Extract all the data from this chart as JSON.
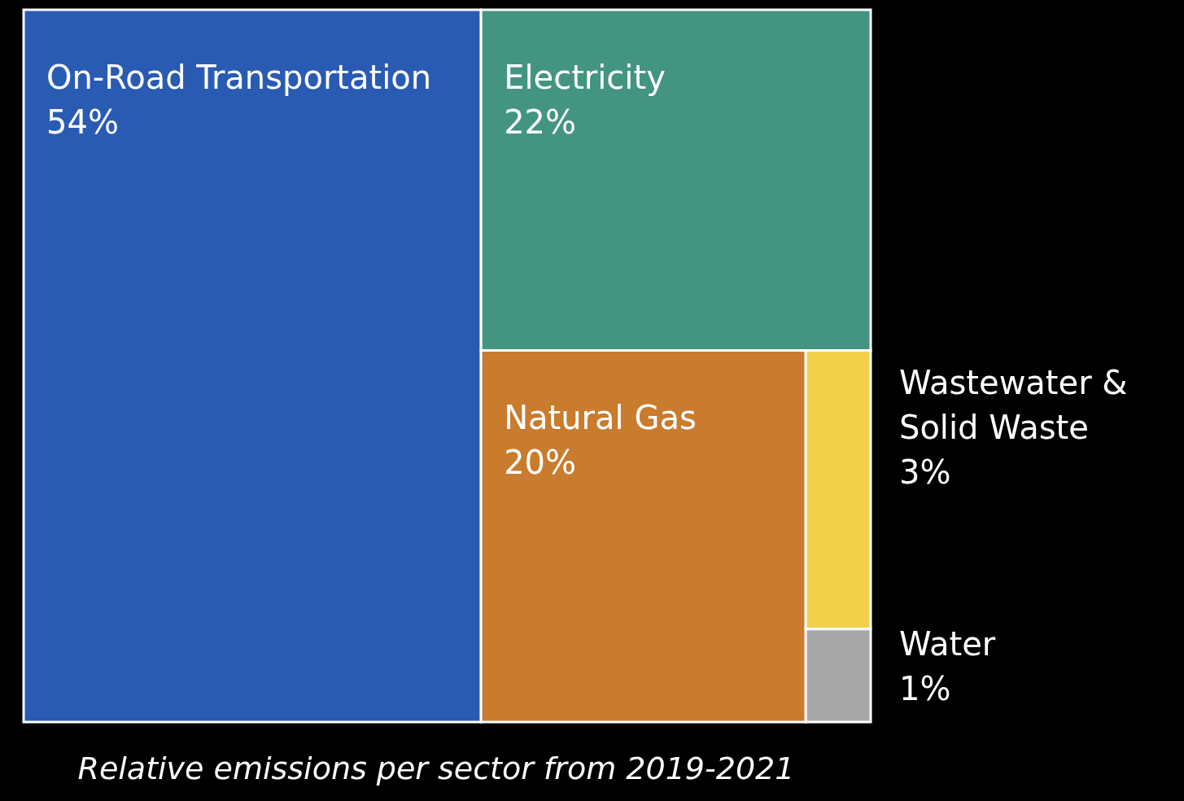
{
  "chart_data": {
    "type": "other",
    "title": "Relative emissions per sector from 2019-2021",
    "categories": [
      "On-Road Transportation",
      "Electricity",
      "Natural Gas",
      "Wastewater & Solid Waste",
      "Water"
    ],
    "values": [
      54,
      22,
      20,
      3,
      1
    ],
    "value_labels": [
      "54%",
      "22%",
      "20%",
      "3%",
      "1%"
    ],
    "colors": [
      "#2a5bb3",
      "#449482",
      "#c97b2e",
      "#f3d04a",
      "#a8a8a8"
    ]
  }
}
